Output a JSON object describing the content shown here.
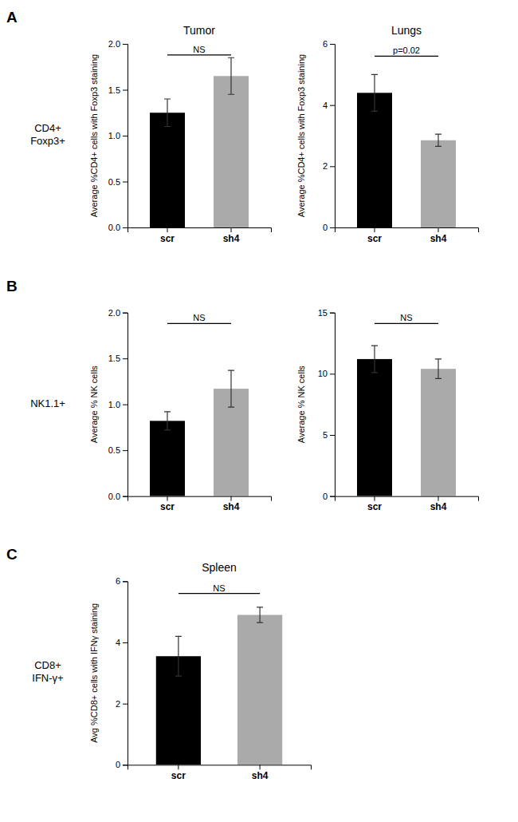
{
  "chart_data": [
    {
      "type": "bar",
      "title": "Tumor",
      "panel_label": "A",
      "row_label": "CD4+\nFoxp3+",
      "categories": [
        "scr",
        "sh4"
      ],
      "values": [
        1.25,
        1.65
      ],
      "errors": [
        0.15,
        0.2
      ],
      "colors": [
        "#000000",
        "#aaaaaa"
      ],
      "ylabel": "Average %CD4+ cells with Foxp3 staining",
      "ylim": [
        0,
        2.0
      ],
      "yticks": [
        {
          "value": 0.0,
          "label": "0.0"
        },
        0.5,
        {
          "value": 1.0,
          "label": "1.0"
        },
        1.5,
        {
          "value": 2.0,
          "label": "2.0"
        }
      ],
      "annotations": [
        {
          "text": "NS",
          "y": 1.88,
          "from": "scr",
          "to": "sh4"
        }
      ]
    },
    {
      "type": "bar",
      "title": "Lungs",
      "categories": [
        "scr",
        "sh4"
      ],
      "values": [
        4.4,
        2.85
      ],
      "errors": [
        0.6,
        0.2
      ],
      "colors": [
        "#000000",
        "#aaaaaa"
      ],
      "ylabel": "Average %CD4+ cells with Foxp3 staining",
      "ylim": [
        0,
        6
      ],
      "yticks": [
        0,
        2,
        4,
        6
      ],
      "annotations": [
        {
          "text": "p=0.02",
          "y": 5.6,
          "from": "scr",
          "to": "sh4"
        }
      ]
    },
    {
      "type": "bar",
      "panel_label": "B",
      "row_label": "NK1.1+",
      "categories": [
        "scr",
        "sh4"
      ],
      "values": [
        0.82,
        1.17
      ],
      "errors": [
        0.1,
        0.2
      ],
      "colors": [
        "#000000",
        "#aaaaaa"
      ],
      "ylabel": "Average % NK cells",
      "ylim": [
        0,
        2.0
      ],
      "yticks": [
        {
          "value": 0.0,
          "label": "0.0"
        },
        0.5,
        {
          "value": 1.0,
          "label": "1.0"
        },
        1.5,
        {
          "value": 2.0,
          "label": "2.0"
        }
      ],
      "annotations": [
        {
          "text": "NS",
          "y": 1.88,
          "from": "scr",
          "to": "sh4"
        }
      ]
    },
    {
      "type": "bar",
      "categories": [
        "scr",
        "sh4"
      ],
      "values": [
        11.2,
        10.4
      ],
      "errors": [
        1.1,
        0.8
      ],
      "colors": [
        "#000000",
        "#aaaaaa"
      ],
      "ylabel": "Average % NK cells",
      "ylim": [
        0,
        15
      ],
      "yticks": [
        0,
        5,
        10,
        15
      ],
      "annotations": [
        {
          "text": "NS",
          "y": 14.1,
          "from": "scr",
          "to": "sh4"
        }
      ]
    },
    {
      "type": "bar",
      "title": "Spleen",
      "panel_label": "C",
      "row_label": "CD8+\nIFN-γ+",
      "categories": [
        "scr",
        "sh4"
      ],
      "values": [
        3.55,
        4.9
      ],
      "errors": [
        0.65,
        0.25
      ],
      "colors": [
        "#000000",
        "#aaaaaa"
      ],
      "ylabel": "Avg %CD8+ cells with IFNγ staining",
      "ylim": [
        0,
        6
      ],
      "yticks": [
        0,
        2,
        4,
        6
      ],
      "annotations": [
        {
          "text": "NS",
          "y": 5.6,
          "from": "scr",
          "to": "sh4"
        }
      ]
    }
  ]
}
